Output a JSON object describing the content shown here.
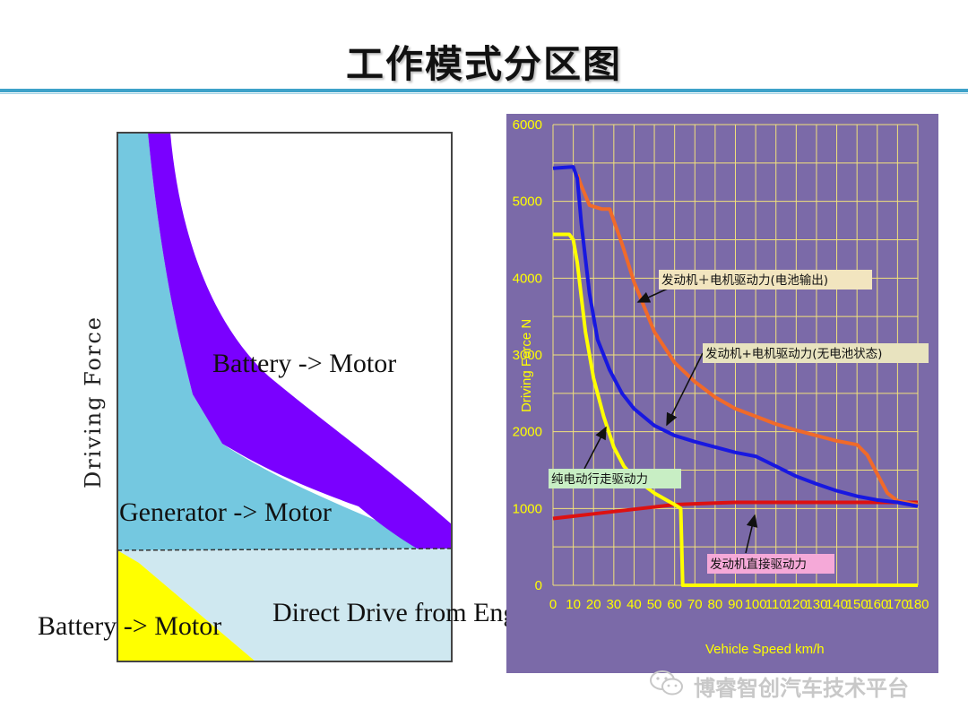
{
  "title": "工作模式分区图",
  "watermark": "博睿智创汽车技术平台",
  "left_diagram": {
    "y_axis_label": "Driving Force",
    "regions": [
      {
        "label": "Battery -> Motor",
        "color": "#7a00ff"
      },
      {
        "label": "Generator -> Motor",
        "color": "#74c8e0"
      },
      {
        "label": "Direct Drive from Engine",
        "color": "#cfe8f0"
      },
      {
        "label": "Battery -> Motor",
        "color": "#ffff00"
      }
    ]
  },
  "chart_data": {
    "type": "line",
    "title": "",
    "xlabel": "Vehicle Speed km/h",
    "ylabel": "Driving Force N",
    "xlim": [
      0,
      180
    ],
    "ylim": [
      0,
      6000
    ],
    "x_ticks": [
      "0",
      "10",
      "20",
      "30",
      "40",
      "50",
      "60",
      "70",
      "80",
      "90",
      "100",
      "110",
      "120",
      "130",
      "140",
      "150",
      "160",
      "170",
      "180"
    ],
    "y_ticks": [
      "0",
      "1000",
      "2000",
      "3000",
      "4000",
      "5000",
      "6000"
    ],
    "grid": true,
    "background": "#7b6aa8",
    "series": [
      {
        "name": "发动机＋电机驱动力(电池输出)",
        "color": "#f06a2a",
        "points": [
          [
            12,
            5350
          ],
          [
            14,
            5200
          ],
          [
            18,
            4950
          ],
          [
            24,
            4900
          ],
          [
            28,
            4900
          ],
          [
            30,
            4750
          ],
          [
            34,
            4450
          ],
          [
            40,
            3950
          ],
          [
            50,
            3300
          ],
          [
            60,
            2900
          ],
          [
            70,
            2650
          ],
          [
            80,
            2450
          ],
          [
            90,
            2300
          ],
          [
            100,
            2200
          ],
          [
            110,
            2100
          ],
          [
            120,
            2020
          ],
          [
            130,
            1950
          ],
          [
            140,
            1880
          ],
          [
            150,
            1830
          ],
          [
            155,
            1700
          ],
          [
            160,
            1450
          ],
          [
            165,
            1200
          ],
          [
            170,
            1100
          ],
          [
            180,
            1050
          ]
        ]
      },
      {
        "name": "发动机+电机驱动力(无电池状态)",
        "color": "#1818e0",
        "points": [
          [
            0,
            5430
          ],
          [
            10,
            5450
          ],
          [
            12,
            5300
          ],
          [
            14,
            4700
          ],
          [
            18,
            3800
          ],
          [
            22,
            3200
          ],
          [
            28,
            2800
          ],
          [
            34,
            2500
          ],
          [
            40,
            2300
          ],
          [
            50,
            2080
          ],
          [
            60,
            1950
          ],
          [
            70,
            1870
          ],
          [
            80,
            1800
          ],
          [
            90,
            1730
          ],
          [
            100,
            1680
          ],
          [
            110,
            1550
          ],
          [
            120,
            1420
          ],
          [
            130,
            1320
          ],
          [
            140,
            1230
          ],
          [
            150,
            1160
          ],
          [
            160,
            1110
          ],
          [
            170,
            1080
          ],
          [
            180,
            1030
          ]
        ]
      },
      {
        "name": "纯电动行走驱动力",
        "color": "#ffff00",
        "points": [
          [
            0,
            4570
          ],
          [
            8,
            4570
          ],
          [
            10,
            4500
          ],
          [
            12,
            4200
          ],
          [
            16,
            3300
          ],
          [
            20,
            2700
          ],
          [
            25,
            2200
          ],
          [
            30,
            1800
          ],
          [
            35,
            1550
          ],
          [
            40,
            1400
          ],
          [
            50,
            1200
          ],
          [
            60,
            1050
          ],
          [
            63,
            1000
          ],
          [
            64,
            0
          ],
          [
            180,
            0
          ]
        ]
      },
      {
        "name": "发动机直接驱动力",
        "color": "#dd1111",
        "points": [
          [
            0,
            870
          ],
          [
            20,
            930
          ],
          [
            40,
            990
          ],
          [
            60,
            1050
          ],
          [
            80,
            1070
          ],
          [
            90,
            1080
          ],
          [
            100,
            1080
          ],
          [
            120,
            1080
          ],
          [
            140,
            1080
          ],
          [
            160,
            1080
          ],
          [
            180,
            1080
          ]
        ]
      }
    ],
    "annotations": [
      {
        "text": "发动机＋电机驱动力(电池输出)",
        "bg": "#f2e5bf"
      },
      {
        "text": "发动机+电机驱动力(无电池状态)",
        "bg": "#e8e3bf"
      },
      {
        "text": "纯电动行走驱动力",
        "bg": "#c8eec4"
      },
      {
        "text": "发动机直接驱动力",
        "bg": "#f5a9d8"
      }
    ]
  }
}
